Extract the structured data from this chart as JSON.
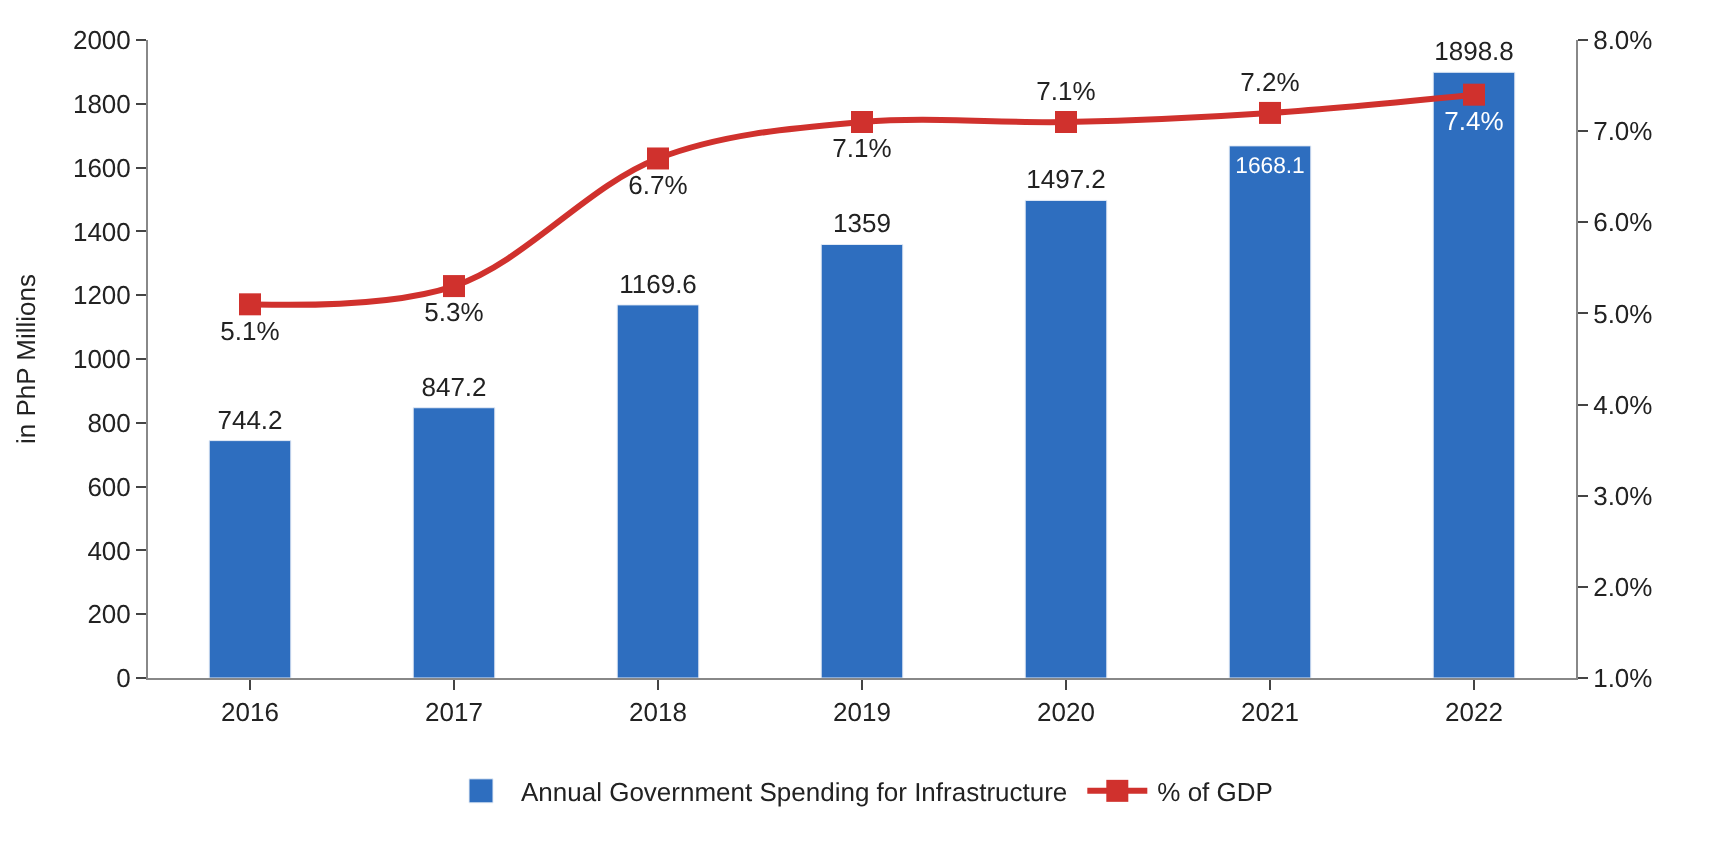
{
  "chart_data": {
    "type": "bar",
    "ylabel": "in PhP Millions",
    "categories": [
      "2016",
      "2017",
      "2018",
      "2019",
      "2020",
      "2021",
      "2022"
    ],
    "series": [
      {
        "name": "Annual Government Spending for Infrastructure",
        "color": "#2e6ebf",
        "values": [
          744.2,
          847.2,
          1169.6,
          1359,
          1497.2,
          1668.1,
          1898.8
        ]
      },
      {
        "name": "% of GDP",
        "type": "line",
        "axis": "y2",
        "color": "#d0312d",
        "marker": "square",
        "values": [
          5.1,
          5.3,
          6.7,
          7.1,
          7.1,
          7.2,
          7.4
        ],
        "value_labels": [
          "5.1%",
          "5.3%",
          "6.7%",
          "7.1%",
          "7.1%",
          "7.2%",
          "7.4%"
        ]
      }
    ],
    "ylim": [
      0,
      2000
    ],
    "yticks": [
      0,
      200,
      400,
      600,
      800,
      1000,
      1200,
      1400,
      1600,
      1800,
      2000
    ],
    "y2lim": [
      1,
      8
    ],
    "y2ticks": [
      {
        "value": 1,
        "label": "1.0%"
      },
      {
        "value": 2,
        "label": "2.0%"
      },
      {
        "value": 3,
        "label": "3.0%"
      },
      {
        "value": 4,
        "label": "4.0%"
      },
      {
        "value": 5,
        "label": "5.0%"
      },
      {
        "value": 6,
        "label": "6.0%"
      },
      {
        "value": 7,
        "label": "7.0%"
      },
      {
        "value": 8,
        "label": "8.0%"
      }
    ],
    "data_labels": true,
    "legend": "bottom"
  }
}
